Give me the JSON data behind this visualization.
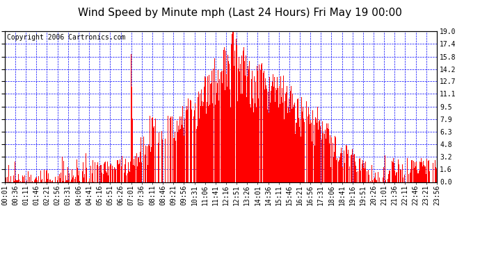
{
  "title": "Wind Speed by Minute mph (Last 24 Hours) Fri May 19 00:00",
  "copyright_text": "Copyright 2006 Cartronics.com",
  "ylabel_right": [
    "0.0",
    "1.6",
    "3.2",
    "4.8",
    "6.3",
    "7.9",
    "9.5",
    "11.1",
    "12.7",
    "14.2",
    "15.8",
    "17.4",
    "19.0"
  ],
  "yticks": [
    0.0,
    1.6,
    3.2,
    4.8,
    6.3,
    7.9,
    9.5,
    11.1,
    12.7,
    14.2,
    15.8,
    17.4,
    19.0
  ],
  "ylim": [
    0.0,
    19.0
  ],
  "bar_color": "#FF0000",
  "background_color": "#FFFFFF",
  "grid_color": "#0000FF",
  "border_color": "#000000",
  "title_fontsize": 11,
  "copyright_fontsize": 7,
  "tick_label_fontsize": 7,
  "x_tick_labels": [
    "00:01",
    "00:36",
    "01:11",
    "01:46",
    "02:21",
    "02:56",
    "03:31",
    "04:06",
    "04:41",
    "05:16",
    "05:51",
    "06:26",
    "07:01",
    "07:36",
    "08:11",
    "08:46",
    "09:21",
    "09:56",
    "10:31",
    "11:06",
    "11:41",
    "12:16",
    "12:51",
    "13:26",
    "14:01",
    "14:36",
    "15:11",
    "15:46",
    "16:21",
    "16:56",
    "17:31",
    "18:06",
    "18:41",
    "19:16",
    "19:51",
    "20:26",
    "21:01",
    "21:36",
    "22:11",
    "22:46",
    "23:21",
    "23:56"
  ],
  "figsize": [
    6.9,
    3.75
  ],
  "dpi": 100
}
